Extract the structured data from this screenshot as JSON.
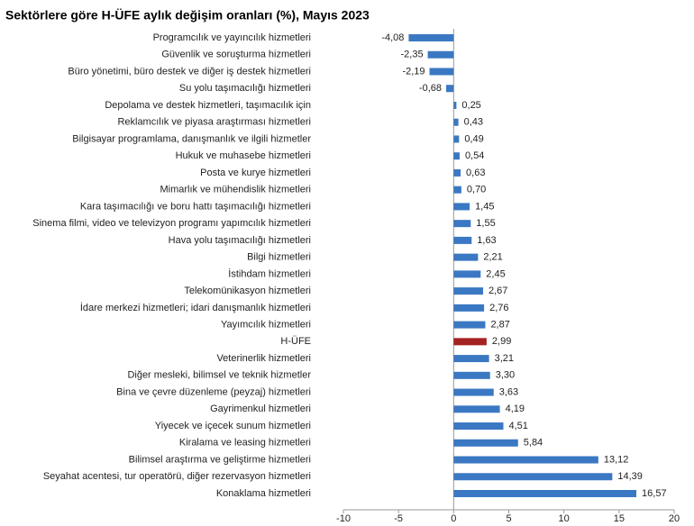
{
  "chart_data": {
    "type": "hbar",
    "title": "Sektörlere göre H-ÜFE aylık değişim oranları (%), Mayıs 2023",
    "categories": [
      "Programcılık ve yayıncılık hizmetleri",
      "Güvenlik ve soruşturma hizmetleri",
      "Büro yönetimi, büro destek ve diğer iş destek hizmetleri",
      "Su yolu taşımacılığı hizmetleri",
      "Depolama ve destek hizmetleri, taşımacılık için",
      "Reklamcılık ve piyasa araştırması hizmetleri",
      "Bilgisayar programlama, danışmanlık ve ilgili hizmetler",
      "Hukuk ve muhasebe hizmetleri",
      "Posta ve kurye hizmetleri",
      "Mimarlık ve mühendislik hizmetleri",
      "Kara taşımacılığı ve boru hattı taşımacılığı hizmetleri",
      "Sinema filmi, video ve televizyon programı yapımcılık hizmetleri",
      "Hava yolu taşımacılığı hizmetleri",
      "Bilgi hizmetleri",
      "İstihdam hizmetleri",
      "Telekomünikasyon hizmetleri",
      "İdare merkezi hizmetleri; idari danışmanlık hizmetleri",
      "Yayımcılık hizmetleri",
      "H-ÜFE",
      "Veterinerlik hizmetleri",
      "Diğer mesleki, bilimsel ve teknik hizmetler",
      "Bina ve çevre düzenleme (peyzaj) hizmetleri",
      "Gayrimenkul hizmetleri",
      "Yiyecek ve içecek sunum hizmetleri",
      "Kiralama ve leasing hizmetleri",
      "Bilimsel araştırma ve geliştirme hizmetleri",
      "Seyahat acentesi, tur operatörü, diğer rezervasyon hizmetleri",
      "Konaklama hizmetleri"
    ],
    "values": [
      -4.08,
      -2.35,
      -2.19,
      -0.68,
      0.25,
      0.43,
      0.49,
      0.54,
      0.63,
      0.7,
      1.45,
      1.55,
      1.63,
      2.21,
      2.45,
      2.67,
      2.76,
      2.87,
      2.99,
      3.21,
      3.3,
      3.63,
      4.19,
      4.51,
      5.84,
      13.12,
      14.39,
      16.57
    ],
    "value_labels": [
      "-4,08",
      "-2,35",
      "-2,19",
      "-0,68",
      "0,25",
      "0,43",
      "0,49",
      "0,54",
      "0,63",
      "0,70",
      "1,45",
      "1,55",
      "1,63",
      "2,21",
      "2,45",
      "2,67",
      "2,76",
      "2,87",
      "2,99",
      "3,21",
      "3,30",
      "3,63",
      "4,19",
      "4,51",
      "5,84",
      "13,12",
      "14,39",
      "16,57"
    ],
    "colors": [
      "#3b78c3",
      "#3b78c3",
      "#3b78c3",
      "#3b78c3",
      "#3b78c3",
      "#3b78c3",
      "#3b78c3",
      "#3b78c3",
      "#3b78c3",
      "#3b78c3",
      "#3b78c3",
      "#3b78c3",
      "#3b78c3",
      "#3b78c3",
      "#3b78c3",
      "#3b78c3",
      "#3b78c3",
      "#3b78c3",
      "#a52222",
      "#3b78c3",
      "#3b78c3",
      "#3b78c3",
      "#3b78c3",
      "#3b78c3",
      "#3b78c3",
      "#3b78c3",
      "#3b78c3",
      "#3b78c3"
    ],
    "xlim": [
      -10,
      20
    ],
    "xticks": [
      -10,
      -5,
      0,
      5,
      10,
      15,
      20
    ]
  }
}
